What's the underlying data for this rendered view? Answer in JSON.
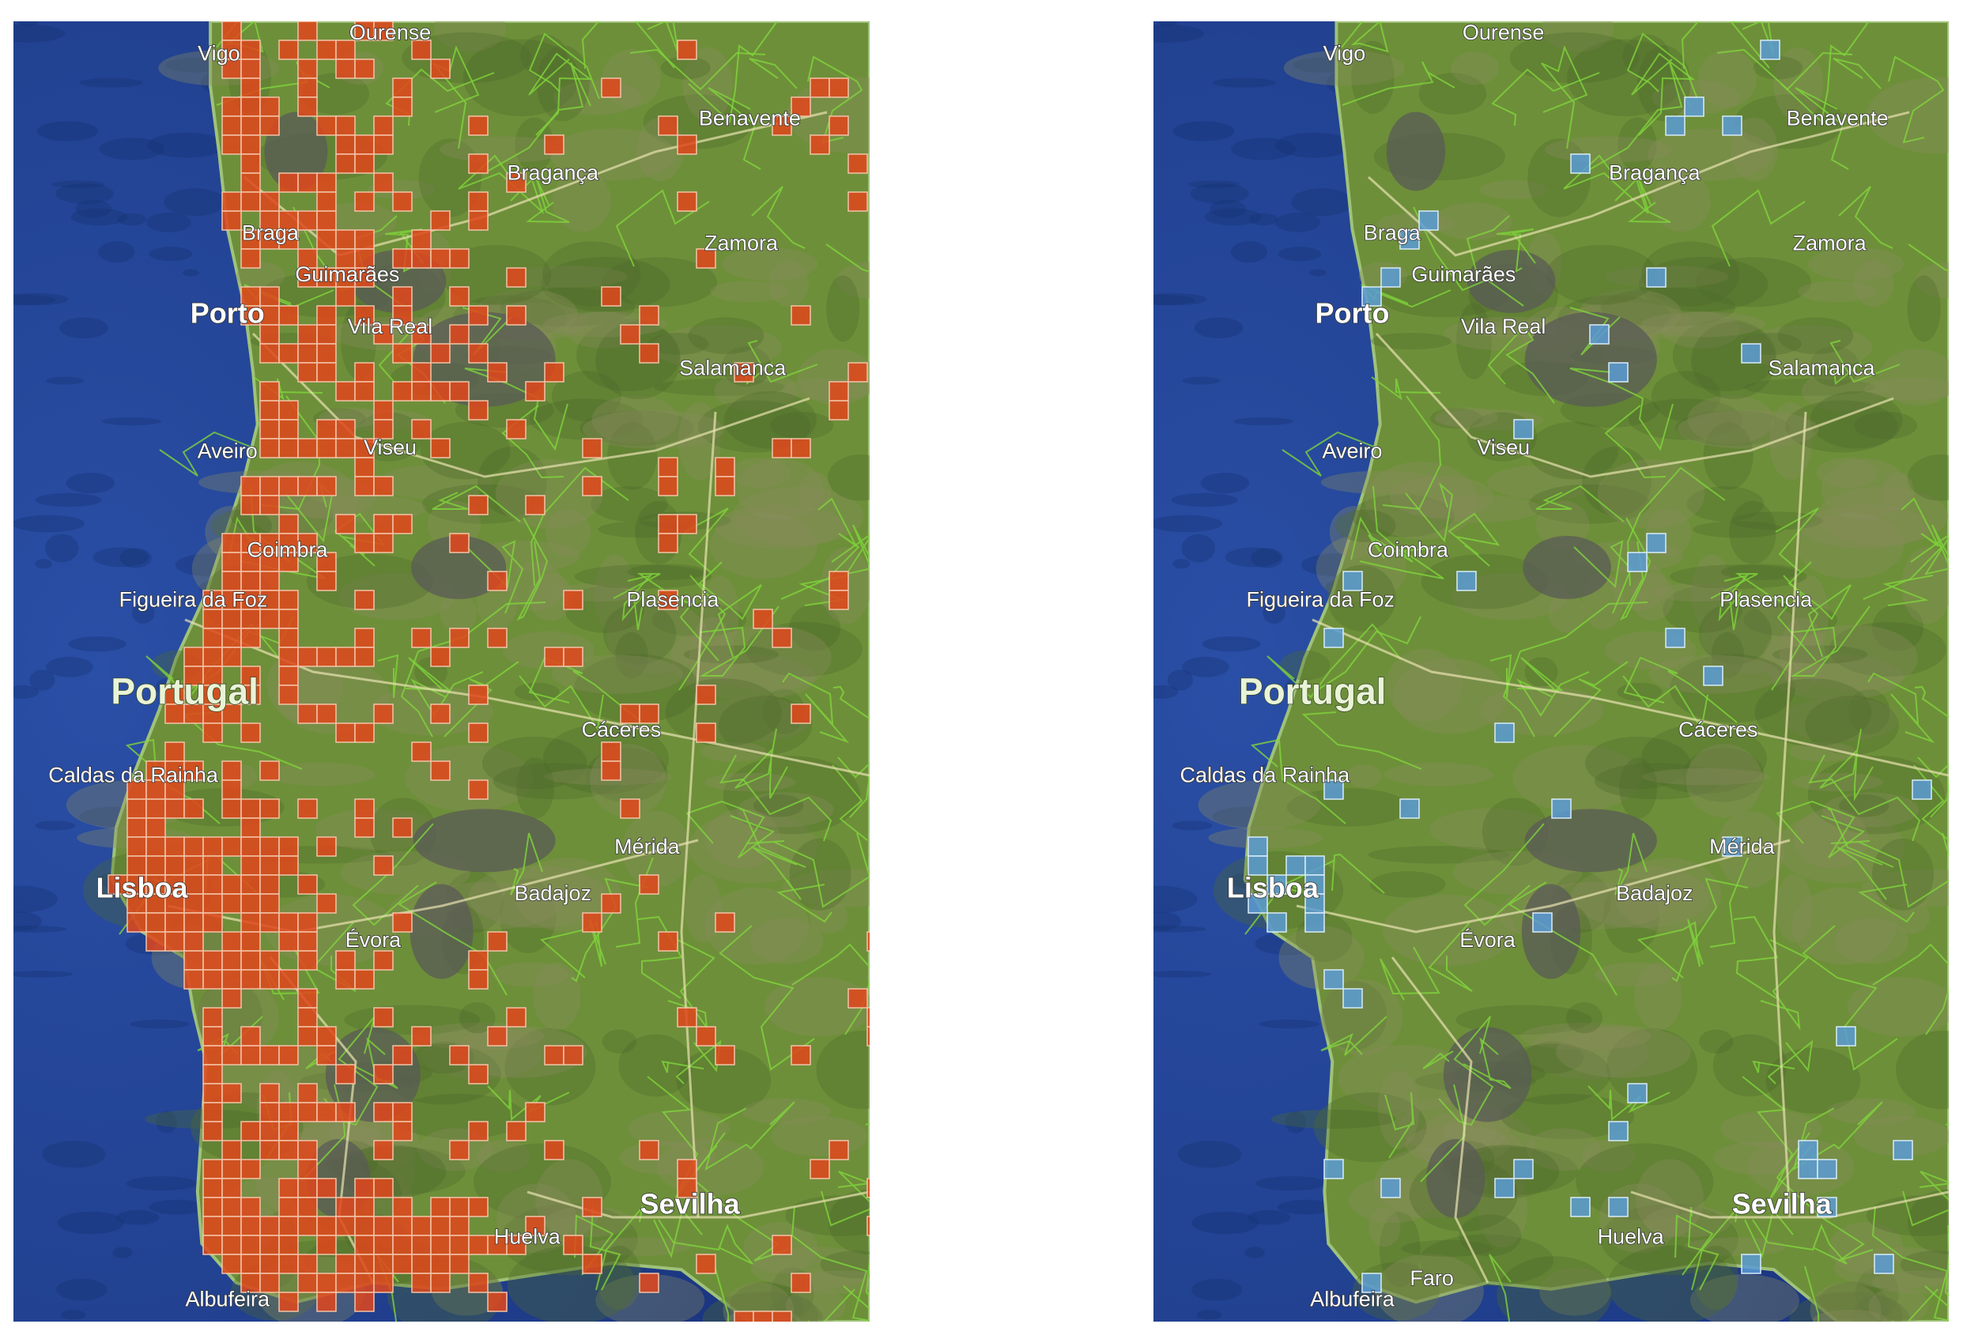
{
  "colors": {
    "ocean": "#2a4fa6",
    "ocean_deep": "#1b3680",
    "land": "#6e8f3a",
    "land_dark": "#4d6b2b",
    "dry": "#8a8c5e",
    "mountain": "#5a5b55",
    "border": "#7fd43c",
    "road": "#e8e3b0",
    "cell_left_fill": "#e0461c",
    "cell_left_stroke": "#f2c4a8",
    "cell_right_fill": "#5b9bd5",
    "cell_right_stroke": "#d9ecf8"
  },
  "panels": [
    {
      "id": "left",
      "overlay_color": "orange",
      "labels": [
        {
          "text": "Vigo"
        },
        {
          "text": "Ourense"
        },
        {
          "text": "Benavente"
        },
        {
          "text": "Bragança"
        },
        {
          "text": "Braga"
        },
        {
          "text": "Zamora"
        },
        {
          "text": "Guimarães"
        },
        {
          "text": "Porto"
        },
        {
          "text": "Vila Real"
        },
        {
          "text": "Salamanca"
        },
        {
          "text": "Aveiro"
        },
        {
          "text": "Viseu"
        },
        {
          "text": "Coimbra"
        },
        {
          "text": "Figueira da Foz"
        },
        {
          "text": "Plasencia"
        },
        {
          "text": "Portugal"
        },
        {
          "text": "Cáceres"
        },
        {
          "text": "Caldas da Rainha"
        },
        {
          "text": "Mérida"
        },
        {
          "text": "Lisboa"
        },
        {
          "text": "Badajoz"
        },
        {
          "text": "Évora"
        },
        {
          "text": "Sevilha"
        },
        {
          "text": "Huelva"
        },
        {
          "text": "Albufeira"
        }
      ]
    },
    {
      "id": "right",
      "overlay_color": "blue",
      "labels": [
        {
          "text": "Vigo"
        },
        {
          "text": "Ourense"
        },
        {
          "text": "Benavente"
        },
        {
          "text": "Bragança"
        },
        {
          "text": "Braga"
        },
        {
          "text": "Zamora"
        },
        {
          "text": "Guimarães"
        },
        {
          "text": "Porto"
        },
        {
          "text": "Vila Real"
        },
        {
          "text": "Salamanca"
        },
        {
          "text": "Aveiro"
        },
        {
          "text": "Viseu"
        },
        {
          "text": "Coimbra"
        },
        {
          "text": "Figueira da Foz"
        },
        {
          "text": "Plasencia"
        },
        {
          "text": "Portugal"
        },
        {
          "text": "Cáceres"
        },
        {
          "text": "Caldas da Rainha"
        },
        {
          "text": "Mérida"
        },
        {
          "text": "Lisboa"
        },
        {
          "text": "Badajoz"
        },
        {
          "text": "Évora"
        },
        {
          "text": "Sevilha"
        },
        {
          "text": "Huelva"
        },
        {
          "text": "Albufeira"
        },
        {
          "text": "Faro"
        }
      ]
    }
  ]
}
